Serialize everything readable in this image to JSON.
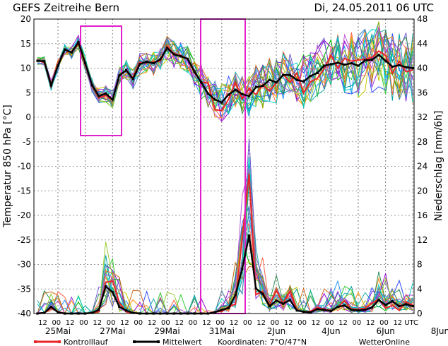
{
  "chart_data": {
    "type": "line",
    "title": "GEFS Zeitreihe Bern",
    "run": "Di, 24.05.2011 06 UTC",
    "ylabel_left": "Temperatur 850 hPa [°C]",
    "ylabel_right": "Niederschlag [mm/6h]",
    "ylim_left": [
      -40,
      20
    ],
    "ylim_right": [
      0,
      48
    ],
    "yticks_left": [
      "20",
      "15",
      "10",
      "5",
      "0",
      "-5",
      "-10",
      "-15",
      "-20",
      "-25",
      "-30",
      "-35",
      "-40"
    ],
    "yticks_right": [
      "48",
      "44",
      "40",
      "36",
      "32",
      "28",
      "24",
      "20",
      "16",
      "12",
      "8",
      "4",
      "0"
    ],
    "x_hour_labels": [
      "12",
      "00",
      "12",
      "00",
      "12",
      "00",
      "12",
      "00",
      "12",
      "00",
      "12",
      "00",
      "12",
      "00",
      "12",
      "00",
      "12",
      "00",
      "12",
      "00",
      "12",
      "00",
      "12",
      "00",
      "12",
      "00",
      "12",
      "UTC"
    ],
    "x_date_labels": [
      "25Mai",
      "27Mai",
      "29Mai",
      "31Mai",
      "2Jun",
      "4Jun",
      "6Jun",
      "8Jun"
    ],
    "grid": true,
    "legend": {
      "kontrolllauf": "Kontrolllauf",
      "mittelwert": "Mittelwert",
      "koordinaten": "Koordinaten: 7°O/47°N",
      "credit": "WetterOnline"
    },
    "colors": {
      "kontrolllauf": "#e8262a",
      "mittelwert": "#000000",
      "highlight": "#e020c8"
    },
    "series": [
      {
        "name": "Mittelwert",
        "axis": "temperature",
        "values": [
          11.5,
          11.4,
          6.5,
          10.5,
          13.8,
          13.2,
          15.3,
          11.0,
          6.5,
          4.3,
          4.8,
          3.6,
          8.5,
          9.6,
          7.8,
          10.8,
          11.3,
          11.0,
          11.8,
          14.1,
          12.8,
          12.4,
          11.9,
          9.3,
          7.1,
          4.8,
          3.6,
          3.0,
          4.6,
          5.6,
          4.7,
          4.3,
          6.1,
          6.4,
          7.6,
          7.1,
          8.6,
          8.6,
          7.6,
          7.3,
          8.4,
          9.0,
          10.5,
          10.8,
          11.1,
          10.7,
          11.0,
          10.5,
          11.6,
          11.7,
          12.7,
          11.5,
          10.3,
          10.6,
          10.2,
          10.0
        ]
      },
      {
        "name": "Mittelwert",
        "axis": "precipitation",
        "values": [
          0,
          0.1,
          1.1,
          0.2,
          0,
          0,
          0,
          0,
          0.1,
          0.6,
          4.4,
          3.5,
          1.1,
          0.5,
          0.1,
          0,
          0,
          0,
          0,
          0,
          0,
          0,
          0,
          0,
          0,
          0,
          0.2,
          0.6,
          0.9,
          3.0,
          7.3,
          12.7,
          4.1,
          3.2,
          1.2,
          2.1,
          1.6,
          2.2,
          0.5,
          0.3,
          0.2,
          0.7,
          0.6,
          0.4,
          1.1,
          1.3,
          0.6,
          0.5,
          0.6,
          1.0,
          2.2,
          1.4,
          2.0,
          1.2,
          1.5,
          1.2
        ]
      }
    ]
  }
}
